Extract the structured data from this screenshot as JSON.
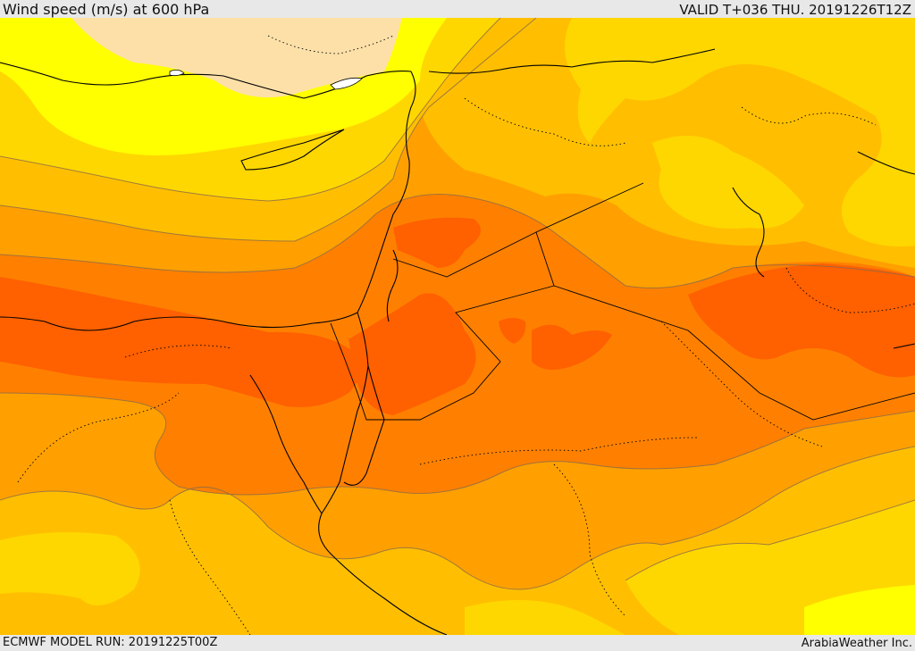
{
  "header": {
    "title": "Wind speed (m/s) at 600 hPa",
    "valid": "VALID T+036 THU. 20191226T12Z"
  },
  "footer": {
    "model_run": "ECMWF MODEL RUN: 20191225T00Z",
    "credit": "ArabiaWeather Inc."
  },
  "colors": {
    "band_0": "#fde0a8",
    "band_1": "#ffff00",
    "band_2": "#ffd700",
    "band_3": "#ffbf00",
    "band_4": "#ffa000",
    "band_5": "#ff8000",
    "band_6": "#ff6000",
    "coast": "#000000",
    "contour": "#8a6a4a"
  }
}
